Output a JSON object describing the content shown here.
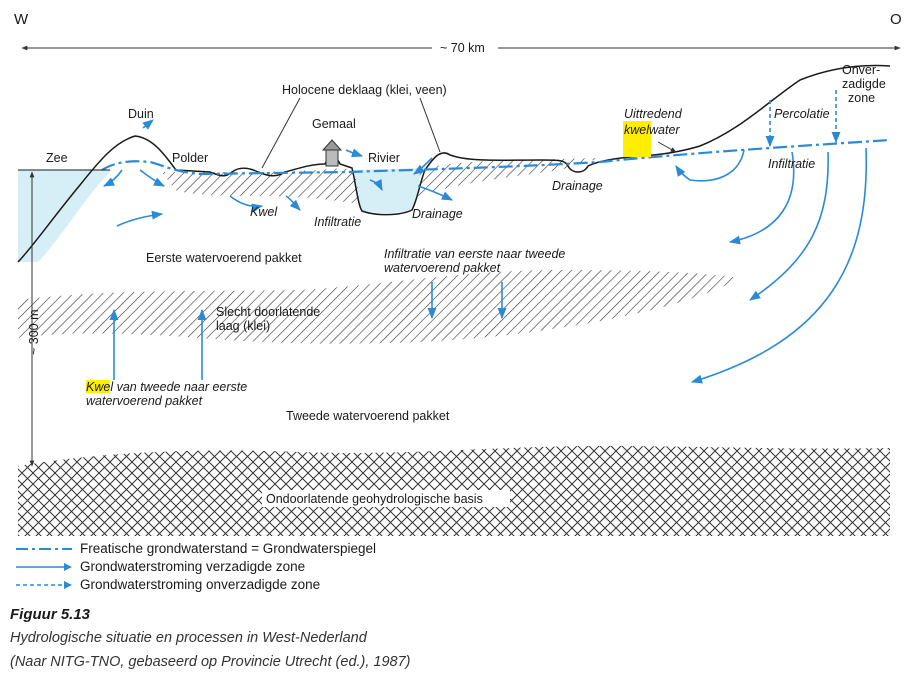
{
  "compass": {
    "west": "W",
    "east": "O"
  },
  "scale": {
    "horizontal": "~ 70 km",
    "vertical": "~ 300 m"
  },
  "labels": {
    "duin": "Duin",
    "zee": "Zee",
    "polder": "Polder",
    "holocene": "Holocene deklaag (klei, veen)",
    "gemaal": "Gemaal",
    "rivier": "Rivier",
    "kwel": "Kwel",
    "infiltratie_rivier": "Infiltratie",
    "drainage_rivier": "Drainage",
    "drainage_east": "Drainage",
    "uittredend_line1": "Uittredend",
    "uittredend_kwel": "kwel",
    "uittredend_water": "water",
    "percolatie": "Percolatie",
    "onverzadigde_1": "Onver-",
    "onverzadigde_2": "zadigde",
    "onverzadigde_3": "zone",
    "infiltratie_east": "Infiltratie",
    "eerste_pakket": "Eerste watervoerend pakket",
    "infiltratie_pakket_1": "Infiltratie van eerste naar tweede",
    "infiltratie_pakket_2": "watervoerend pakket",
    "slecht_1": "Slecht doorlatende",
    "slecht_2": "laag (klei)",
    "kwel_tweede_kwel": "Kwel",
    "kwel_tweede_rest": " van tweede naar eerste",
    "kwel_tweede_2": "watervoerend pakket",
    "tweede_pakket": "Tweede watervoerend pakket",
    "basis": "Ondoorlatende geohydrologische basis"
  },
  "legend": [
    {
      "style": "dash-dot",
      "text": "Freatische grondwaterstand = Grondwaterspiegel"
    },
    {
      "style": "solid-arrow",
      "text": "Grondwaterstroming verzadigde zone"
    },
    {
      "style": "dashed-arrow",
      "text": "Grondwaterstroming onverzadigde zone"
    }
  ],
  "caption": {
    "title": "Figuur 5.13",
    "line1": "Hydrologische situatie en processen in West-Nederland",
    "line2": "(Naar NITG-TNO, gebaseerd op Provincie Utrecht (ed.), 1987)"
  },
  "colors": {
    "water": "#d6eef6",
    "arrow": "#2b8ad6",
    "highlight": "#ffee00",
    "line": "#1a1a1a"
  }
}
